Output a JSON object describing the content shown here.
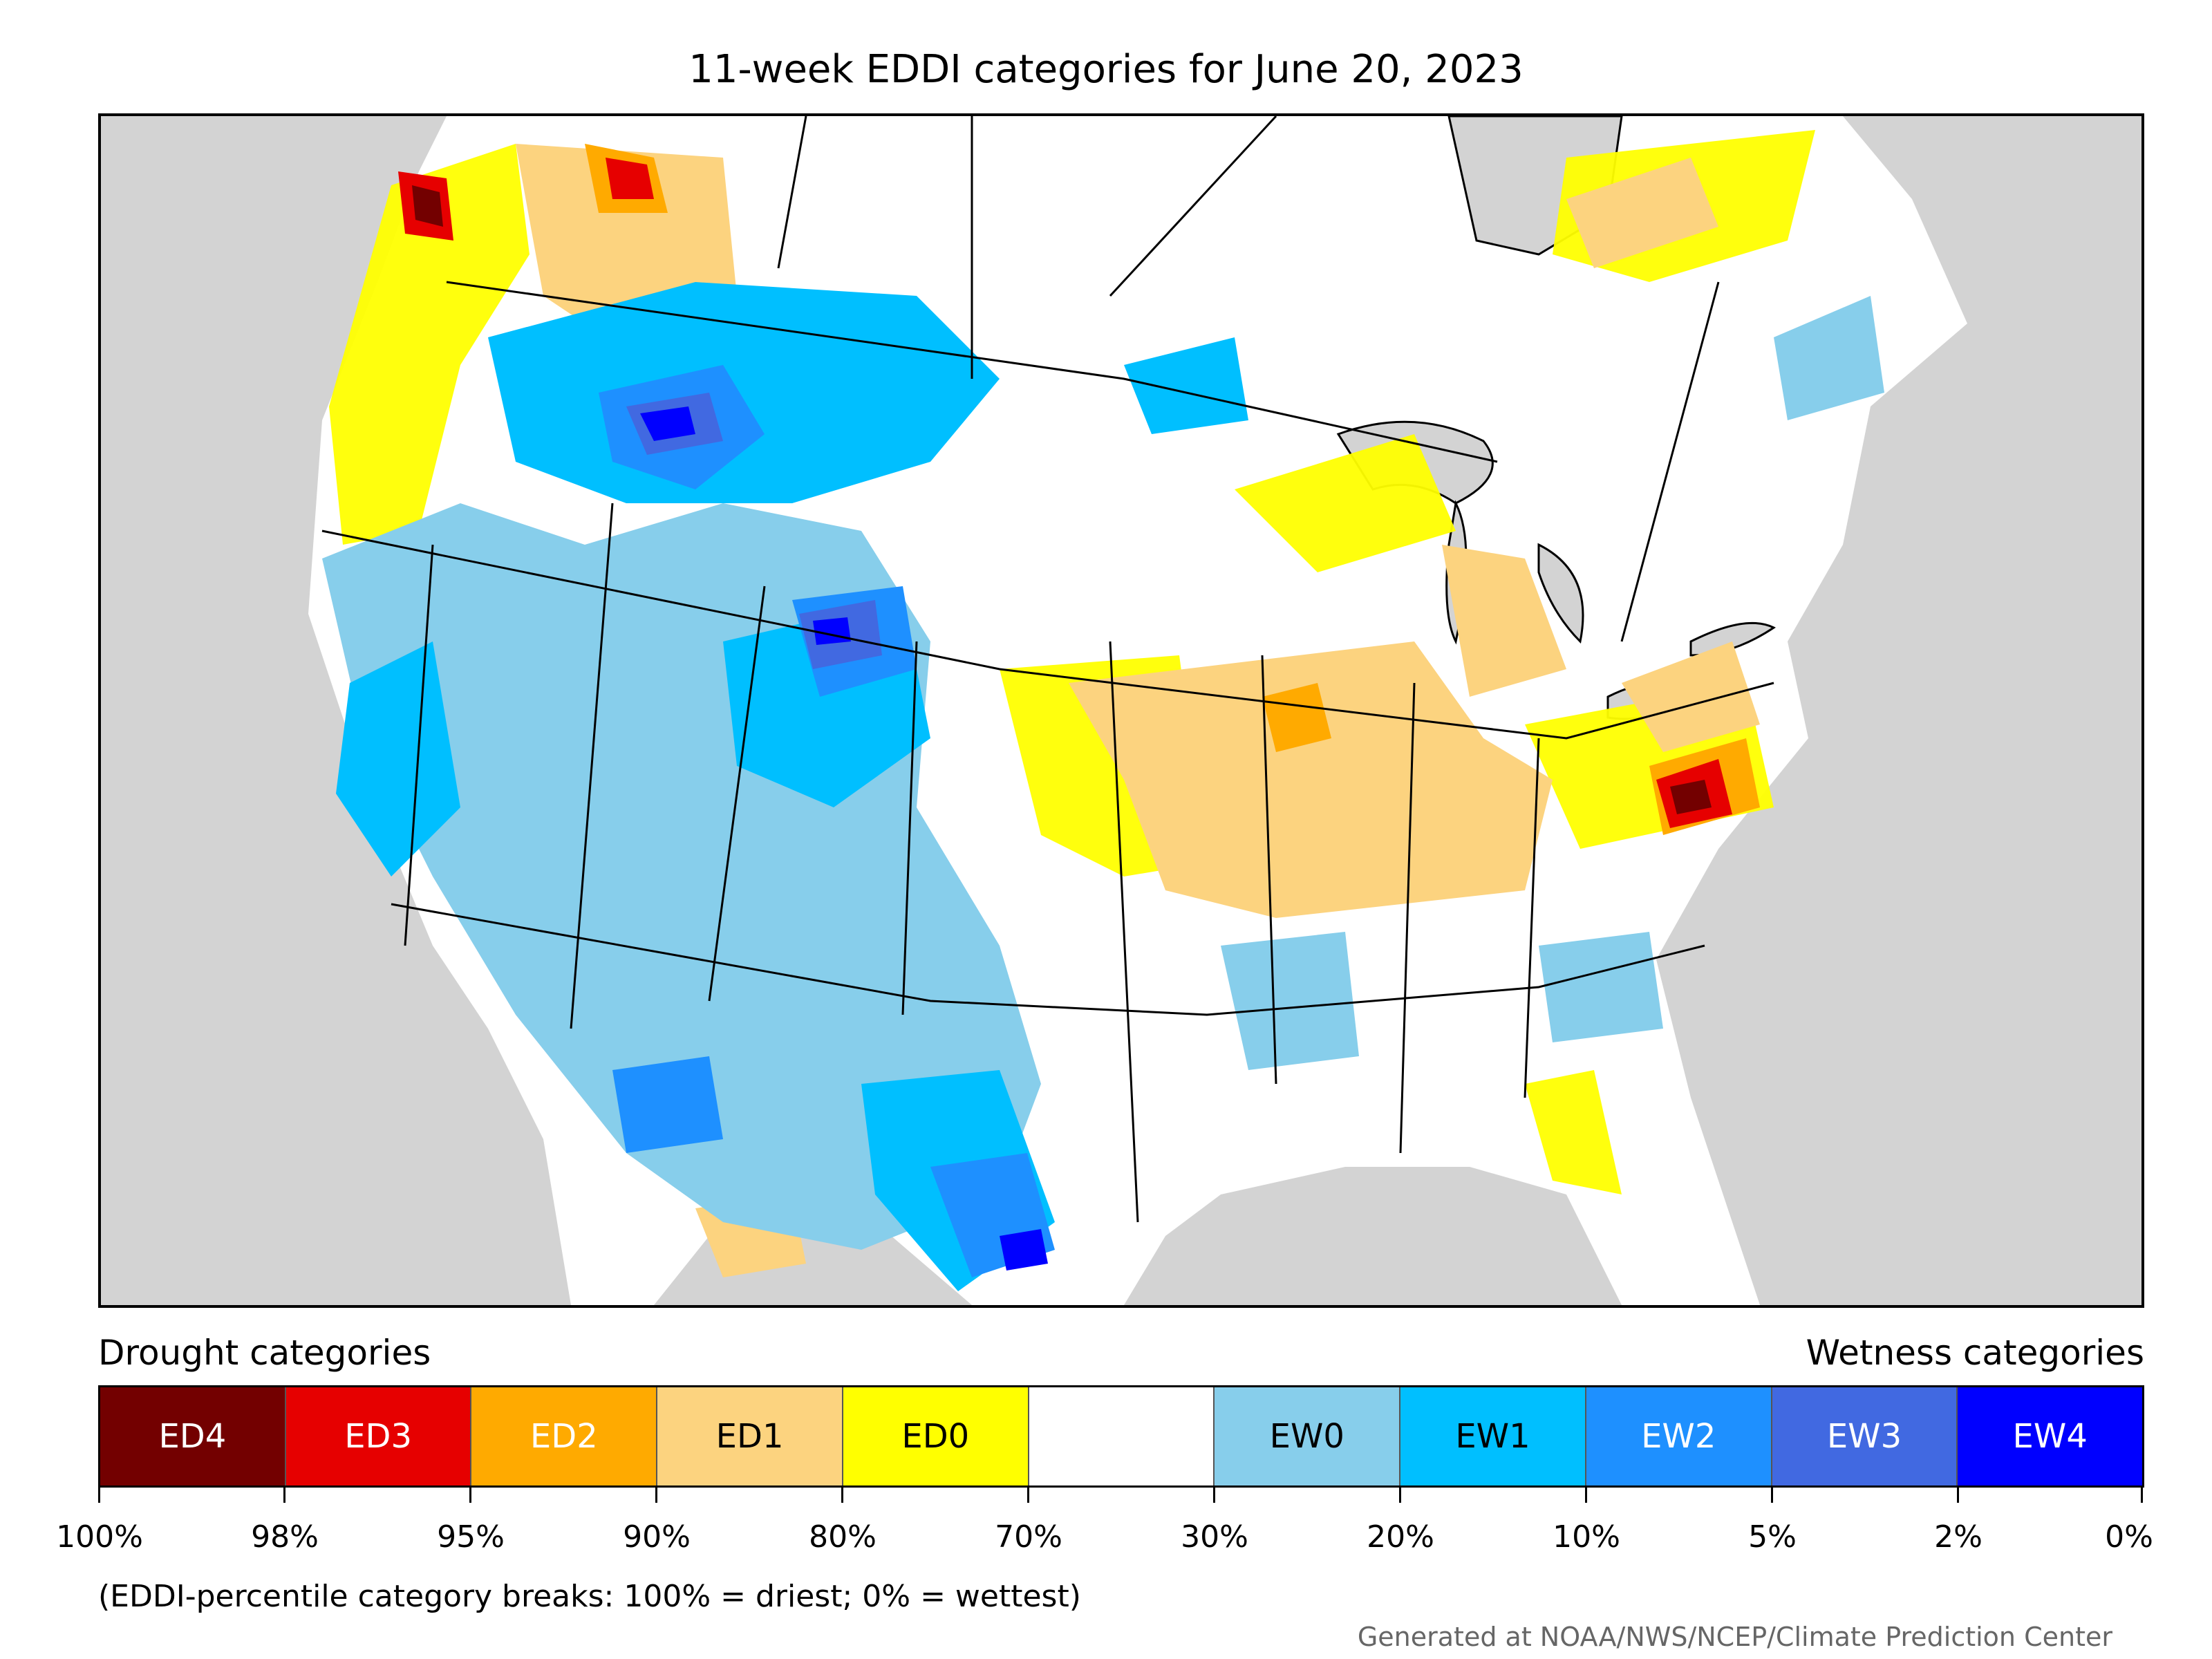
{
  "title": "11-week EDDI categories for June 20, 2023",
  "legend": {
    "drought_label": "Drought categories",
    "wetness_label": "Wetness categories",
    "categories": [
      {
        "label": "ED4",
        "color": "#730000",
        "text_color": "#ffffff"
      },
      {
        "label": "ED3",
        "color": "#e60000",
        "text_color": "#ffffff"
      },
      {
        "label": "ED2",
        "color": "#ffaa00",
        "text_color": "#ffffff"
      },
      {
        "label": "ED1",
        "color": "#fcd37f",
        "text_color": "#000000"
      },
      {
        "label": "ED0",
        "color": "#ffff00",
        "text_color": "#000000"
      },
      {
        "label": "",
        "color": "#ffffff",
        "text_color": "#000000"
      },
      {
        "label": "EW0",
        "color": "#87ceeb",
        "text_color": "#000000"
      },
      {
        "label": "EW1",
        "color": "#00bfff",
        "text_color": "#000000"
      },
      {
        "label": "EW2",
        "color": "#1e90ff",
        "text_color": "#ffffff"
      },
      {
        "label": "EW3",
        "color": "#4169e1",
        "text_color": "#ffffff"
      },
      {
        "label": "EW4",
        "color": "#0000ff",
        "text_color": "#ffffff"
      }
    ],
    "tick_labels": [
      "100%",
      "98%",
      "95%",
      "90%",
      "80%",
      "70%",
      "30%",
      "20%",
      "10%",
      "5%",
      "2%",
      "0%"
    ]
  },
  "note": "(EDDI-percentile category breaks: 100% = driest; 0% = wettest)",
  "credit": "Generated at NOAA/NWS/NCEP/Climate Prediction Center"
}
